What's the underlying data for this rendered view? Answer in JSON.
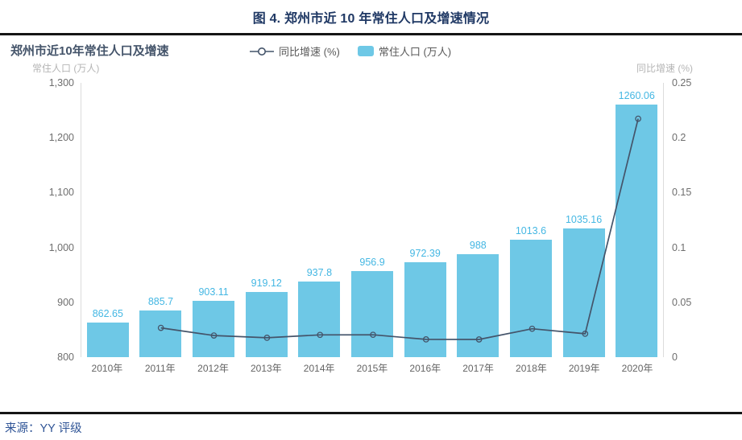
{
  "figure_title": "图 4. 郑州市近 10 年常住人口及增速情况",
  "source": "来源：YY 评级",
  "chart": {
    "title": "郑州市近10年常住人口及增速",
    "legend": {
      "line_label": "同比增速 (%)",
      "bar_label": "常住人口 (万人)"
    },
    "left_axis_title": "常住人口 (万人)",
    "right_axis_title": "同比增速 (%)"
  },
  "chart_data": {
    "type": "bar",
    "title": "郑州市近10年常住人口及增速",
    "categories": [
      "2010年",
      "2011年",
      "2012年",
      "2013年",
      "2014年",
      "2015年",
      "2016年",
      "2017年",
      "2018年",
      "2019年",
      "2020年"
    ],
    "series": [
      {
        "name": "常住人口 (万人)",
        "type": "bar",
        "axis": "left",
        "values": [
          862.65,
          885.7,
          903.11,
          919.12,
          937.8,
          956.9,
          972.39,
          988,
          1013.6,
          1035.16,
          1260.06
        ],
        "labels": [
          "862.65",
          "885.7",
          "903.11",
          "919.12",
          "937.8",
          "956.9",
          "972.39",
          "988",
          "1013.6",
          "1035.16",
          "1260.06"
        ]
      },
      {
        "name": "同比增速 (%)",
        "type": "line",
        "axis": "right",
        "values": [
          null,
          0.0267,
          0.0197,
          0.0177,
          0.0203,
          0.0204,
          0.0162,
          0.0161,
          0.0259,
          0.0213,
          0.2173
        ]
      }
    ],
    "left_axis": {
      "min": 800,
      "max": 1300,
      "ticks": [
        {
          "value": 1300,
          "label": "1,300"
        },
        {
          "value": 1200,
          "label": "1,200"
        },
        {
          "value": 1100,
          "label": "1,100"
        },
        {
          "value": 1000,
          "label": "1,000"
        },
        {
          "value": 900,
          "label": "900"
        },
        {
          "value": 800,
          "label": "800"
        }
      ]
    },
    "right_axis": {
      "min": 0,
      "max": 0.25,
      "ticks": [
        {
          "value": 0.25,
          "label": "0.25"
        },
        {
          "value": 0.2,
          "label": "0.2"
        },
        {
          "value": 0.15,
          "label": "0.15"
        },
        {
          "value": 0.1,
          "label": "0.1"
        },
        {
          "value": 0.05,
          "label": "0.05"
        },
        {
          "value": 0,
          "label": "0"
        }
      ]
    },
    "grid": false,
    "legend_position": "top-center",
    "colors": {
      "bar": "#6EC8E6",
      "bar_label": "#44B7E3",
      "line": "#44546A",
      "title": "#1F3864",
      "chart_title": "#44546A",
      "source_text": "#2F5496"
    }
  }
}
